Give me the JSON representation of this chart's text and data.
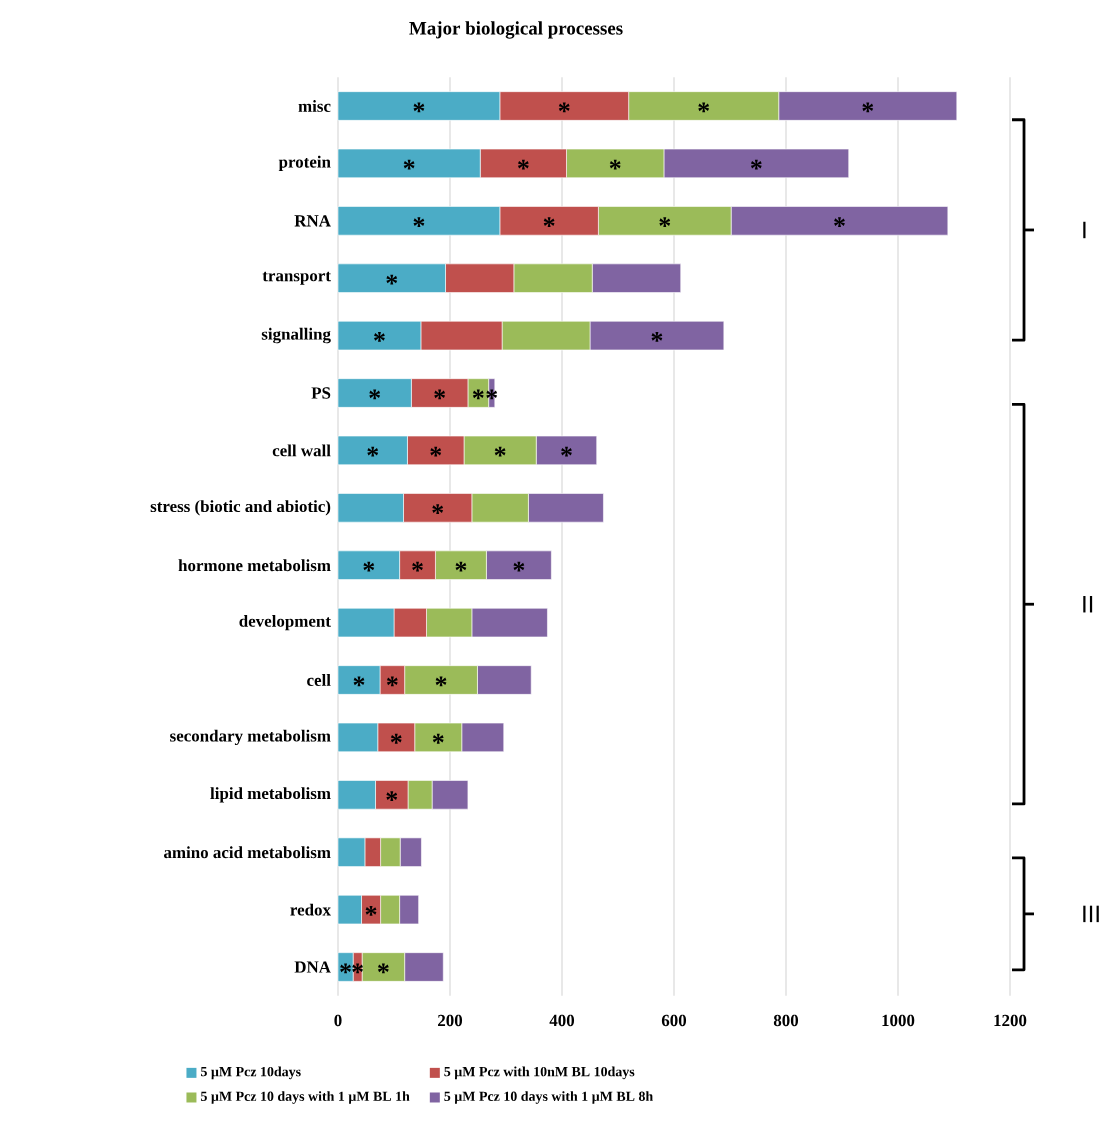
{
  "chart_data": {
    "type": "bar",
    "orientation": "horizontal",
    "stacked": true,
    "title": "Major biological processes",
    "categories": [
      "misc",
      "protein",
      "RNA",
      "transport",
      "signalling",
      "PS",
      "cell wall",
      "stress (biotic and abiotic)",
      "hormone metabolism",
      "development",
      "cell",
      "secondary metabolism",
      "lipid metabolism",
      "amino acid metabolism",
      "redox",
      "DNA"
    ],
    "series": [
      {
        "name": "5 µM Pcz 10days",
        "color": "#4bacc6",
        "values": [
          289,
          254,
          289,
          192,
          148,
          131,
          124,
          117,
          110,
          100,
          75,
          71,
          67,
          48,
          42,
          27
        ],
        "value_labels": [
          "*",
          "*",
          "*",
          "*",
          "*",
          "*",
          "*",
          null,
          "*",
          null,
          "*",
          null,
          null,
          null,
          null,
          "*"
        ]
      },
      {
        "name": "5 µM Pcz with 10nM BL 10days",
        "color": "#c0504d",
        "values": [
          230,
          154,
          176,
          122,
          145,
          101,
          101,
          122,
          64,
          58,
          44,
          66,
          58,
          28,
          34,
          16
        ],
        "value_labels": [
          "*",
          "*",
          "*",
          null,
          null,
          "*",
          "*",
          "*",
          "*",
          null,
          "*",
          "*",
          "*",
          null,
          "*",
          "*"
        ]
      },
      {
        "name": "5 µM Pcz 10 days with 1 µM BL 1h",
        "color": "#9bbb59",
        "values": [
          268,
          174,
          237,
          140,
          157,
          37,
          129,
          101,
          91,
          81,
          130,
          84,
          43,
          35,
          34,
          76
        ],
        "value_labels": [
          "*",
          "*",
          "*",
          null,
          null,
          "*",
          "*",
          null,
          "*",
          null,
          "*",
          "*",
          null,
          null,
          null,
          "*"
        ]
      },
      {
        "name": "5 µM Pcz 10 days with 1 µM BL 8h",
        "color": "#8064a2",
        "values": [
          318,
          330,
          387,
          158,
          239,
          11,
          108,
          134,
          116,
          135,
          96,
          75,
          64,
          38,
          34,
          69
        ],
        "value_labels": [
          "*",
          "*",
          "*",
          null,
          "*",
          "*",
          "*",
          null,
          "*",
          null,
          null,
          null,
          null,
          null,
          null,
          null
        ]
      }
    ],
    "xlim": [
      0,
      1200
    ],
    "xticks": [
      0,
      200,
      400,
      600,
      800,
      1000,
      1200
    ],
    "grid": "x",
    "legend": "bottom",
    "annotations": [
      "I",
      "II",
      "III"
    ]
  }
}
